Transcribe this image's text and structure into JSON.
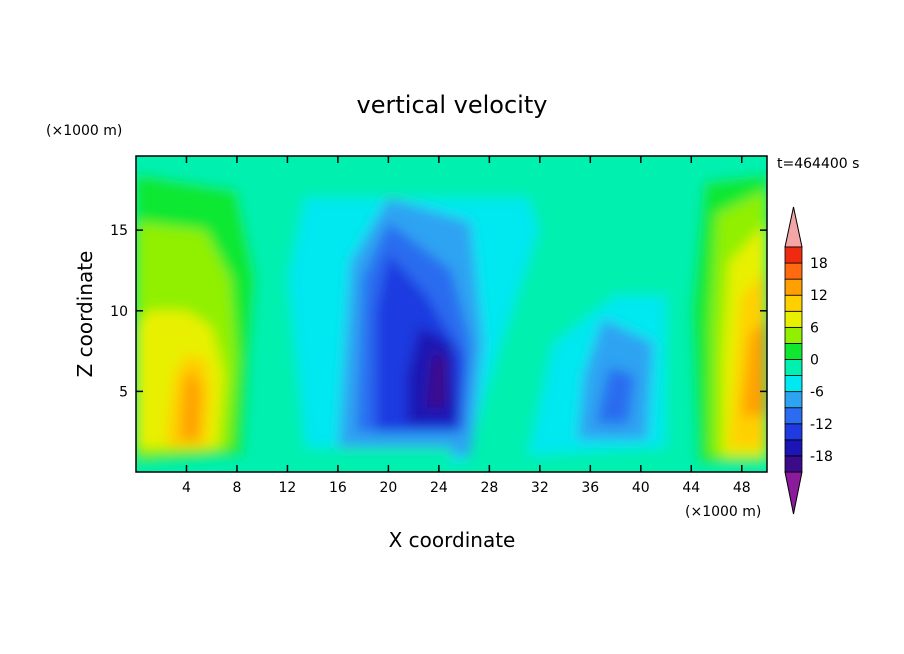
{
  "chart_data": {
    "type": "heatmap",
    "title": "vertical velocity",
    "xlabel": "X coordinate",
    "ylabel": "Z coordinate",
    "x_unit": "(×1000 m)",
    "y_unit": "(×1000 m)",
    "time_label": "t=464400 s",
    "xlim": [
      0,
      50
    ],
    "ylim": [
      0,
      19.6
    ],
    "x_ticks": [
      4,
      8,
      12,
      16,
      20,
      24,
      28,
      32,
      36,
      40,
      44,
      48
    ],
    "y_ticks": [
      5,
      10,
      15
    ],
    "colorbar": {
      "levels": [
        -21,
        -18,
        -15,
        -12,
        -9,
        -6,
        -3,
        0,
        3,
        6,
        9,
        12,
        15,
        18,
        21
      ],
      "tick_labels": [
        -18,
        -12,
        -6,
        0,
        6,
        12,
        18
      ],
      "colors": [
        "#8b1a9c",
        "#3d0a8a",
        "#1c14b4",
        "#1f3ae0",
        "#2b6cf0",
        "#2ea3f2",
        "#00e8f0",
        "#00f0b0",
        "#10e830",
        "#90f000",
        "#e8f000",
        "#ffd000",
        "#ffa000",
        "#ff6a10",
        "#f02a10",
        "#f4a6a6"
      ],
      "extend": "both"
    },
    "features": [
      {
        "x": 4.5,
        "z": 5.2,
        "value": 17
      },
      {
        "x": 3.5,
        "z": 10,
        "value": 8
      },
      {
        "x": 49,
        "z": 7,
        "value": 18
      },
      {
        "x": 48,
        "z": 13,
        "value": 9
      },
      {
        "x": 23,
        "z": 7,
        "value": -15
      },
      {
        "x": 21,
        "z": 10.5,
        "value": -11
      },
      {
        "x": 22,
        "z": 15,
        "value": -5
      },
      {
        "x": 38,
        "z": 5,
        "value": -6
      },
      {
        "x": 14,
        "z": 10,
        "value": 1
      }
    ]
  }
}
